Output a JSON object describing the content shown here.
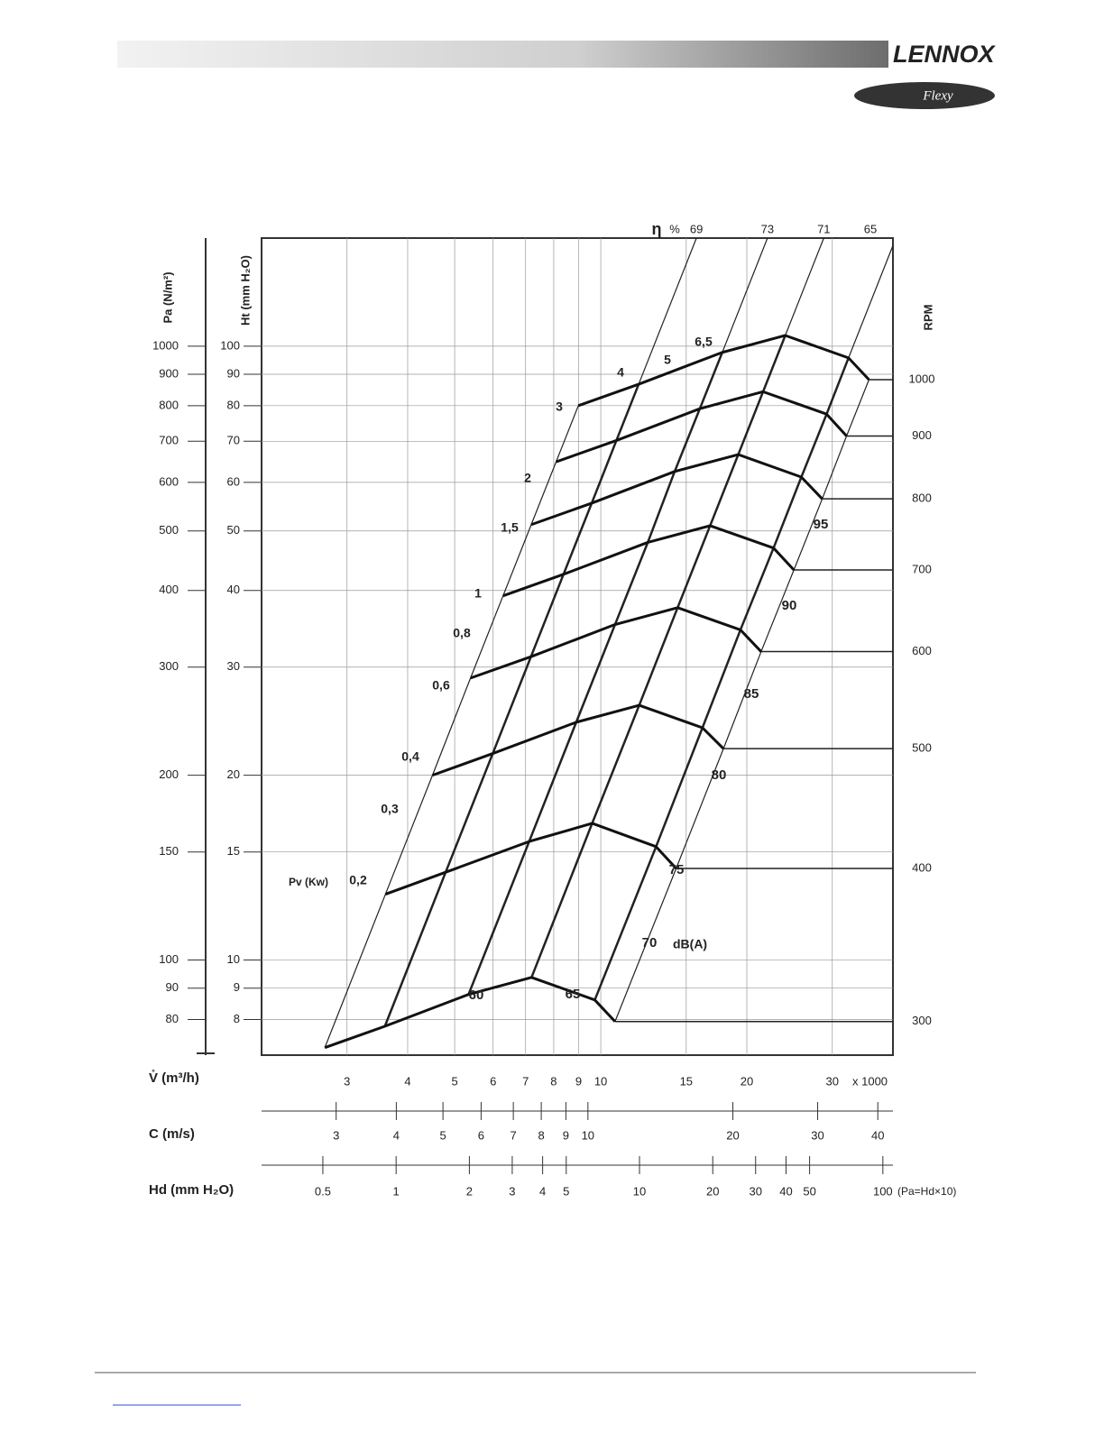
{
  "header": {
    "brand": "LENNOX",
    "product": "Flexy"
  },
  "chart_data": {
    "type": "fan-curve",
    "ylabel": "Ht (mm H₂O)",
    "y2label": "Pa (N/m²)",
    "xlabel": "V̊ (m³/h)",
    "x_multiplier": "x 1000",
    "rpm_label": "RPM",
    "xscale": "log",
    "yscale": "log",
    "xlim": [
      2,
      40
    ],
    "ylim": [
      7,
      150
    ],
    "y2lim": [
      70,
      1500
    ],
    "xticks": [
      3,
      4,
      5,
      6,
      7,
      8,
      9,
      10,
      15,
      20,
      30
    ],
    "yticks": [
      8,
      9,
      10,
      15,
      20,
      30,
      40,
      50,
      60,
      70,
      80,
      90,
      100
    ],
    "y2ticks": [
      80,
      90,
      100,
      150,
      200,
      300,
      400,
      500,
      600,
      700,
      800,
      900,
      1000
    ],
    "grid": true,
    "series": [
      {
        "name": "1000",
        "x": [
          8.99,
          11.97,
          17.8,
          24.0,
          32.4,
          35.7
        ],
        "values": [
          80.0,
          86.7,
          97.7,
          104.1,
          95.7,
          88.2
        ]
      },
      {
        "name": "900",
        "x": [
          8.09,
          10.77,
          16.0,
          21.6,
          29.2,
          32.1
        ],
        "values": [
          64.8,
          70.2,
          79.1,
          84.3,
          77.5,
          71.4
        ]
      },
      {
        "name": "800",
        "x": [
          7.19,
          9.58,
          14.2,
          19.2,
          25.9,
          28.6
        ],
        "values": [
          51.2,
          55.5,
          62.5,
          66.6,
          61.2,
          56.4
        ]
      },
      {
        "name": "700",
        "x": [
          6.29,
          8.38,
          12.5,
          16.8,
          22.7,
          25.0
        ],
        "values": [
          39.2,
          42.5,
          47.9,
          51.0,
          46.9,
          43.2
        ]
      },
      {
        "name": "600",
        "x": [
          5.39,
          7.18,
          10.7,
          14.4,
          19.4,
          21.4
        ],
        "values": [
          28.8,
          31.2,
          35.2,
          37.5,
          34.5,
          31.8
        ]
      },
      {
        "name": "500",
        "x": [
          4.5,
          5.99,
          8.9,
          12.0,
          16.2,
          17.9
        ],
        "values": [
          20.0,
          21.7,
          24.4,
          26.0,
          23.9,
          22.1
        ]
      },
      {
        "name": "400",
        "x": [
          3.6,
          4.79,
          7.12,
          9.6,
          13.0,
          14.3
        ],
        "values": [
          12.8,
          13.9,
          15.6,
          16.7,
          15.3,
          14.1
        ]
      },
      {
        "name": "300",
        "x": [
          2.7,
          3.59,
          5.34,
          7.2,
          9.72,
          10.7
        ],
        "values": [
          7.2,
          7.8,
          8.79,
          9.37,
          8.61,
          7.94
        ]
      }
    ],
    "efficiency": {
      "symbol": "η",
      "unit": "%",
      "values": [
        69,
        73,
        71,
        65
      ]
    },
    "power": {
      "label": "Pv (Kw)",
      "values": [
        "0,2",
        "0,3",
        "0,4",
        "0,6",
        "0,8",
        "1",
        "1,5",
        "2",
        "3",
        "4",
        "5",
        "6,5"
      ]
    },
    "sound": {
      "label": "dB(A)",
      "values": [
        "60",
        "65",
        "70",
        "75",
        "80",
        "85",
        "90",
        "95"
      ]
    },
    "velocity_axis": {
      "label": "C (m/s)",
      "lim": [
        2.1,
        43
      ],
      "ticks": [
        3,
        4,
        5,
        6,
        7,
        8,
        9,
        10,
        20,
        30,
        40
      ]
    },
    "dynamic_axis": {
      "label": "Hd (mm H₂O)",
      "note": "(Pa=Hd×10)",
      "lim": [
        0.28,
        110
      ],
      "ticks": [
        0.5,
        1,
        2,
        3,
        4,
        5,
        10,
        20,
        30,
        40,
        50,
        100
      ]
    }
  }
}
